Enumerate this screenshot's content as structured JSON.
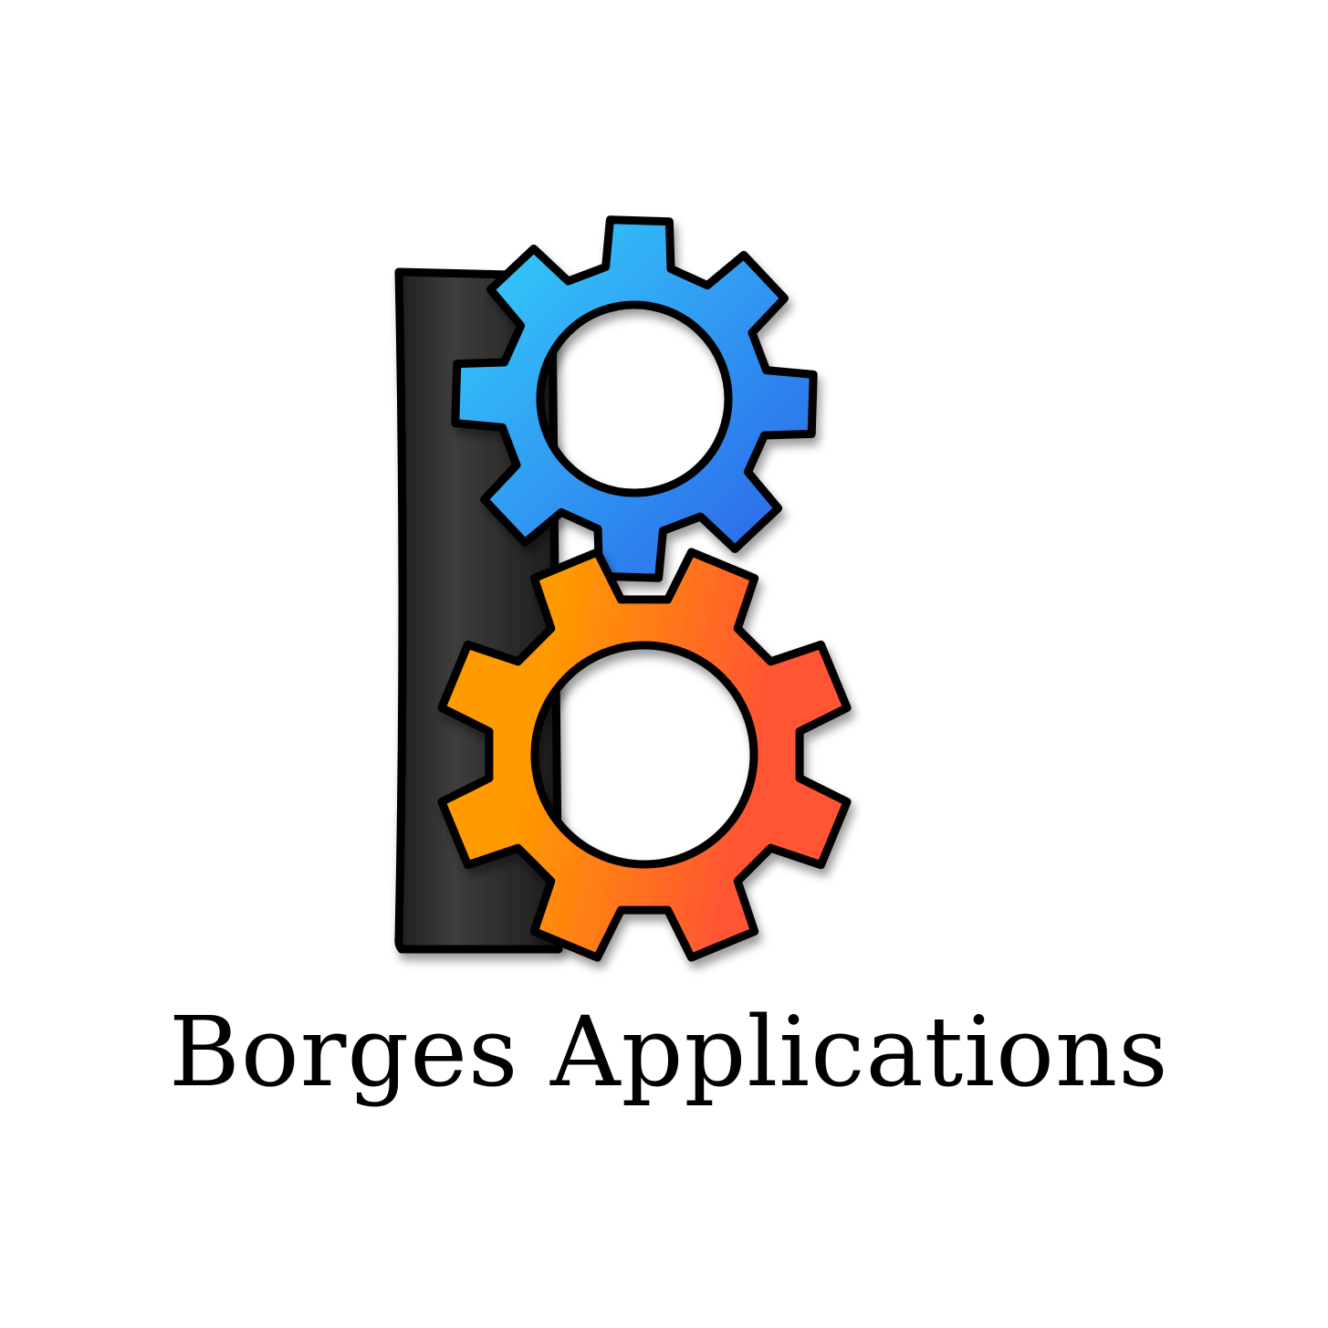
{
  "logo": {
    "name": "Borges Applications",
    "colors": {
      "bar_top": "#202020",
      "bar_mid": "#3d3d3d",
      "outline": "#000000",
      "blue_gear_light": "#35d3fc",
      "blue_gear_dark": "#2b5fe8",
      "orange_gear_light": "#ff9a00",
      "orange_gear_dark": "#ff5434",
      "hole_fill": "#ffffff",
      "text": "#000000"
    },
    "icons": {
      "bar": "vertical-bar-icon",
      "top_gear": "blue-gear-icon",
      "bottom_gear": "orange-gear-icon"
    }
  }
}
